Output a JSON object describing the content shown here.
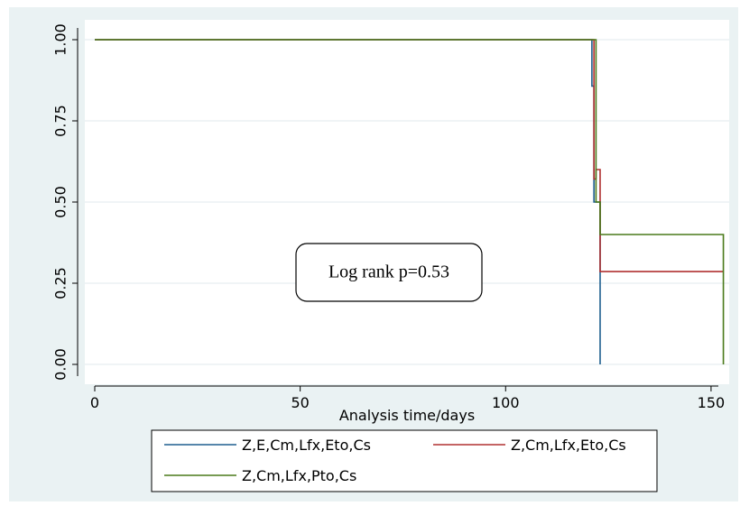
{
  "chart_data": {
    "type": "line",
    "step": true,
    "title": "",
    "xlabel": "Analysis time/days",
    "ylabel": "",
    "xlim": [
      0,
      155
    ],
    "ylim": [
      0,
      1
    ],
    "x_ticks": [
      0,
      50,
      100,
      150
    ],
    "x_tick_labels": [
      "0",
      "50",
      "100",
      "150"
    ],
    "y_ticks": [
      0,
      0.25,
      0.5,
      0.75,
      1
    ],
    "y_tick_labels": [
      "0.00",
      "0.25",
      "0.50",
      "0.75",
      "1.00"
    ],
    "grid": true,
    "legend_placement": "bottom",
    "annotation": "Log rank p=0.53",
    "series": [
      {
        "name": "Z,E,Cm,Lfx,Eto,Cs",
        "color": "#1f5f8f",
        "x": [
          0,
          121,
          121.5,
          123,
          123
        ],
        "y": [
          1,
          0.857,
          0.5,
          0.286,
          0
        ]
      },
      {
        "name": "Z,Cm,Lfx,Eto,Cs",
        "color": "#b03030",
        "x": [
          0,
          121.5,
          122,
          123,
          153
        ],
        "y": [
          1,
          0.571,
          0.6,
          0.286,
          0.286
        ]
      },
      {
        "name": "Z,Cm,Lfx,Pto,Cs",
        "color": "#4a7a1a",
        "x": [
          0,
          122,
          123,
          153,
          153
        ],
        "y": [
          1,
          0.5,
          0.4,
          0.4,
          0
        ]
      }
    ]
  }
}
